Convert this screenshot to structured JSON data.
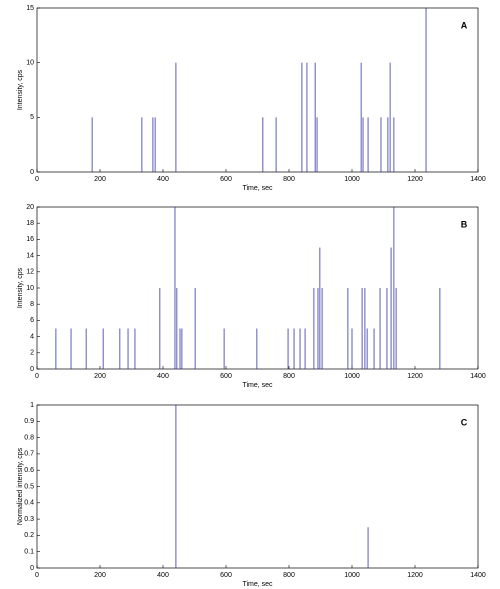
{
  "chart_data": [
    {
      "type": "spike",
      "annotation": "A",
      "xlabel": "Time, sec",
      "ylabel": "Intensity, cps",
      "color": "#3333aa",
      "x": [
        175,
        333,
        368,
        375,
        441,
        717,
        759,
        841,
        857,
        883,
        889,
        1029,
        1035,
        1051,
        1092,
        1114,
        1121,
        1133,
        1235
      ],
      "values": [
        5,
        5,
        5,
        5,
        10,
        5,
        5,
        10,
        10,
        10,
        5,
        10,
        5,
        5,
        5,
        5,
        10,
        5,
        15
      ],
      "xlim": [
        0,
        1400
      ],
      "ylim": [
        0,
        15
      ],
      "xticks": [
        0,
        200,
        400,
        600,
        800,
        1000,
        1200,
        1400
      ],
      "yticks": [
        0,
        5,
        10,
        15
      ]
    },
    {
      "type": "spike",
      "annotation": "B",
      "xlabel": "Time, sec",
      "ylabel": "Intensity, cps",
      "color": "#3333aa",
      "x": [
        60,
        108,
        156,
        210,
        263,
        289,
        311,
        390,
        438,
        444,
        454,
        460,
        502,
        594,
        698,
        797,
        816,
        835,
        851,
        879,
        892,
        898,
        905,
        987,
        1000,
        1032,
        1041,
        1048,
        1070,
        1089,
        1111,
        1124,
        1133,
        1140,
        1279
      ],
      "values": [
        5,
        5,
        5,
        5,
        5,
        5,
        5,
        10,
        20,
        10,
        5,
        5,
        10,
        5,
        5,
        5,
        5,
        5,
        5,
        10,
        10,
        15,
        10,
        10,
        5,
        10,
        10,
        5,
        5,
        10,
        10,
        15,
        20,
        10,
        10
      ],
      "xlim": [
        0,
        1400
      ],
      "ylim": [
        0,
        20
      ],
      "xticks": [
        0,
        200,
        400,
        600,
        800,
        1000,
        1200,
        1400
      ],
      "yticks": [
        0,
        2,
        4,
        6,
        8,
        10,
        12,
        14,
        16,
        18,
        20
      ]
    },
    {
      "type": "spike",
      "annotation": "C",
      "xlabel": "Time, sec",
      "ylabel": "Normalized intensity, cps",
      "color": "#3333aa",
      "x": [
        441,
        1051
      ],
      "values": [
        1,
        0.25
      ],
      "xlim": [
        0,
        1400
      ],
      "ylim": [
        0,
        1
      ],
      "xticks": [
        0,
        200,
        400,
        600,
        800,
        1000,
        1200,
        1400
      ],
      "yticks": [
        0,
        0.1,
        0.2,
        0.3,
        0.4,
        0.5,
        0.6,
        0.7,
        0.8,
        0.9,
        1
      ]
    }
  ]
}
